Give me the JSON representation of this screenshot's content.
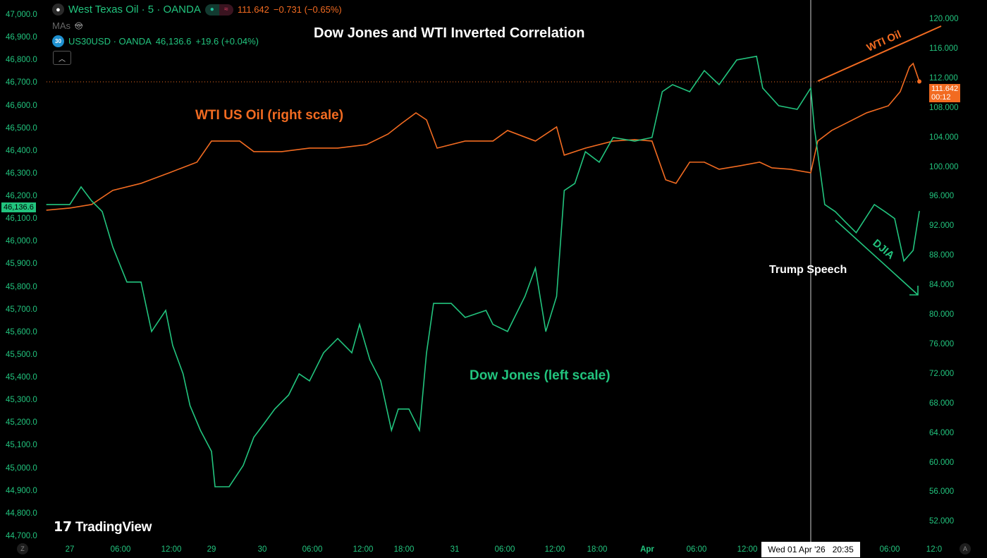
{
  "header": {
    "symbol_main": "West Texas Oil · 5 · OANDA",
    "main_price": "111.642",
    "main_change": "−0.731 (−0.65%)",
    "mas_label": "MAs",
    "symbol_second_badge": "30",
    "symbol_second": "US30USD · OANDA",
    "second_price": "46,136.6",
    "second_change": "+19.6 (+0.04%)",
    "icons": [
      "oil-drop-icon",
      "market-open-dot-icon",
      "wave-icon",
      "eye-off-icon",
      "chevron-up-icon"
    ]
  },
  "colors": {
    "dow": "#22c47e",
    "oil": "#f26b21",
    "background": "#000000",
    "annotation": "#ffffff"
  },
  "logo": "TradingView",
  "price_tags": {
    "oil_price": "111.642",
    "oil_countdown": "00:12",
    "dow_price": "46,136.6"
  },
  "crosshair_label": "Wed 01 Apr '26   20:35",
  "corner_buttons": {
    "left": "Z",
    "right": "A"
  },
  "chart_data": {
    "type": "line",
    "title": "Dow Jones and WTI Inverted Correlation",
    "grid": false,
    "x_ticks": [
      "27",
      "06:00",
      "12:00",
      "29",
      "30",
      "06:00",
      "12:00",
      "18:00",
      "31",
      "06:00",
      "12:00",
      "18:00",
      "Apr",
      "06:00",
      "12:00",
      "06:00",
      "12:0"
    ],
    "left_axis": {
      "range": [
        44700,
        47000
      ],
      "ticks": [
        "47,000.0",
        "46,900.0",
        "46,800.0",
        "46,700.0",
        "46,600.0",
        "46,500.0",
        "46,400.0",
        "46,300.0",
        "46,200.0",
        "46,100.0",
        "46,000.0",
        "45,900.0",
        "45,800.0",
        "45,700.0",
        "45,600.0",
        "45,500.0",
        "45,400.0",
        "45,300.0",
        "45,200.0",
        "45,100.0",
        "45,000.0",
        "44,900.0",
        "44,800.0",
        "44,700.0"
      ]
    },
    "right_axis": {
      "range": [
        52,
        120
      ],
      "ticks": [
        "120.000",
        "116.000",
        "112.000",
        "108.000",
        "104.000",
        "100.000",
        "96.000",
        "92.000",
        "88.000",
        "84.000",
        "80.000",
        "76.000",
        "72.000",
        "68.000",
        "64.000",
        "60.000",
        "56.000",
        "52.000"
      ]
    },
    "annotations": {
      "oil_label": "WTI US Oil (right scale)",
      "dow_label": "Dow Jones (left scale)",
      "event_label": "Trump Speech",
      "oil_arrow_label": "WTI Oil",
      "dow_arrow_label": "DJIA"
    },
    "series": [
      {
        "name": "US30USD · OANDA",
        "axis": "left",
        "points": [
          [
            "03-26 21:15",
            46166
          ],
          [
            "03-27 00:00",
            46166
          ],
          [
            "03-27 01:20",
            46244
          ],
          [
            "03-27 02:35",
            46182
          ],
          [
            "03-27 03:50",
            46135
          ],
          [
            "03-27 05:05",
            45979
          ],
          [
            "03-27 06:45",
            45824
          ],
          [
            "03-27 08:25",
            45824
          ],
          [
            "03-27 09:40",
            45606
          ],
          [
            "03-27 11:20",
            45699
          ],
          [
            "03-27 12:10",
            45544
          ],
          [
            "03-27 13:25",
            45419
          ],
          [
            "03-27 14:15",
            45279
          ],
          [
            "03-27 15:30",
            45170
          ],
          [
            "03-29 18:00",
            45077
          ],
          [
            "03-29 18:25",
            44921
          ],
          [
            "03-29 20:05",
            44921
          ],
          [
            "03-29 21:45",
            45015
          ],
          [
            "03-29 23:00",
            45139
          ],
          [
            "03-30 00:15",
            45201
          ],
          [
            "03-30 01:30",
            45264
          ],
          [
            "03-30 03:10",
            45326
          ],
          [
            "03-30 04:25",
            45419
          ],
          [
            "03-30 05:40",
            45388
          ],
          [
            "03-30 07:20",
            45512
          ],
          [
            "03-30 09:00",
            45575
          ],
          [
            "03-30 10:40",
            45512
          ],
          [
            "03-30 11:35",
            45637
          ],
          [
            "03-30 13:00",
            45481
          ],
          [
            "03-30 14:35",
            45388
          ],
          [
            "03-30 16:10",
            45170
          ],
          [
            "03-30 17:10",
            45264
          ],
          [
            "03-30 18:35",
            45264
          ],
          [
            "03-30 19:50",
            45170
          ],
          [
            "03-30 20:40",
            45512
          ],
          [
            "03-30 21:30",
            45730
          ],
          [
            "03-30 23:35",
            45730
          ],
          [
            "03-31 01:15",
            45668
          ],
          [
            "03-31 03:45",
            45699
          ],
          [
            "03-31 04:35",
            45637
          ],
          [
            "03-31 06:20",
            45606
          ],
          [
            "03-31 08:25",
            45761
          ],
          [
            "03-31 09:40",
            45886
          ],
          [
            "03-31 10:55",
            45606
          ],
          [
            "03-31 12:15",
            45761
          ],
          [
            "03-31 13:20",
            46228
          ],
          [
            "03-31 14:50",
            46259
          ],
          [
            "03-31 16:20",
            46399
          ],
          [
            "03-31 18:15",
            46353
          ],
          [
            "03-31 19:55",
            46462
          ],
          [
            "03-31 22:30",
            46446
          ],
          [
            "04-01 00:35",
            46462
          ],
          [
            "04-01 01:50",
            46664
          ],
          [
            "04-01 03:05",
            46695
          ],
          [
            "04-01 05:10",
            46664
          ],
          [
            "04-01 06:55",
            46757
          ],
          [
            "04-01 08:40",
            46695
          ],
          [
            "04-01 10:45",
            46804
          ],
          [
            "04-01 13:15",
            46820
          ],
          [
            "04-01 14:05",
            46680
          ],
          [
            "04-01 16:15",
            46602
          ],
          [
            "04-01 18:45",
            46586
          ],
          [
            "04-01 20:35",
            46680
          ],
          [
            "04-01 21:00",
            46508
          ],
          [
            "04-01 22:15",
            46166
          ],
          [
            "04-01 23:30",
            46135
          ],
          [
            "04-02 00:45",
            46088
          ],
          [
            "04-02 02:00",
            46042
          ],
          [
            "04-02 04:10",
            46166
          ],
          [
            "04-02 05:25",
            46135
          ],
          [
            "04-02 06:40",
            46104
          ],
          [
            "04-02 07:55",
            45917
          ],
          [
            "04-02 09:10",
            45964
          ],
          [
            "04-02 10:00",
            46136.6
          ]
        ]
      },
      {
        "name": "West Texas Oil · 5 · OANDA",
        "axis": "right",
        "points": [
          [
            "03-26 21:15",
            94.22
          ],
          [
            "03-27 00:00",
            94.51
          ],
          [
            "03-27 02:35",
            94.99
          ],
          [
            "03-27 05:05",
            96.9
          ],
          [
            "03-27 08:25",
            97.85
          ],
          [
            "03-27 11:45",
            99.28
          ],
          [
            "03-27 15:05",
            100.72
          ],
          [
            "03-29 18:00",
            103.58
          ],
          [
            "03-29 21:20",
            103.58
          ],
          [
            "03-29 23:00",
            102.15
          ],
          [
            "03-30 02:20",
            102.15
          ],
          [
            "03-30 05:40",
            102.62
          ],
          [
            "03-30 09:00",
            102.62
          ],
          [
            "03-30 12:30",
            103.1
          ],
          [
            "03-30 15:40",
            104.53
          ],
          [
            "03-30 17:40",
            105.97
          ],
          [
            "03-30 19:25",
            107.4
          ],
          [
            "03-30 20:40",
            106.44
          ],
          [
            "03-30 21:55",
            102.62
          ],
          [
            "03-31 01:15",
            103.58
          ],
          [
            "03-31 04:35",
            103.58
          ],
          [
            "03-31 06:20",
            105.01
          ],
          [
            "03-31 09:40",
            103.58
          ],
          [
            "03-31 12:15",
            105.49
          ],
          [
            "03-31 13:20",
            101.67
          ],
          [
            "03-31 16:20",
            102.62
          ],
          [
            "03-31 19:55",
            103.58
          ],
          [
            "03-31 22:30",
            103.77
          ],
          [
            "04-01 00:35",
            103.58
          ],
          [
            "04-01 02:15",
            98.33
          ],
          [
            "04-01 03:30",
            97.85
          ],
          [
            "04-01 05:10",
            100.72
          ],
          [
            "04-01 06:55",
            100.72
          ],
          [
            "04-01 08:40",
            99.76
          ],
          [
            "04-01 11:10",
            100.24
          ],
          [
            "04-01 13:40",
            100.72
          ],
          [
            "04-01 15:20",
            99.95
          ],
          [
            "04-01 17:50",
            99.76
          ],
          [
            "04-01 20:35",
            99.28
          ],
          [
            "04-01 21:25",
            103.58
          ],
          [
            "04-01 23:05",
            105.01
          ],
          [
            "04-02 00:45",
            105.97
          ],
          [
            "04-02 03:15",
            107.4
          ],
          [
            "04-02 05:50",
            108.35
          ],
          [
            "04-02 07:25",
            110.26
          ],
          [
            "04-02 08:40",
            113.6
          ],
          [
            "04-02 09:10",
            114.08
          ],
          [
            "04-02 10:00",
            111.642
          ]
        ]
      }
    ]
  }
}
